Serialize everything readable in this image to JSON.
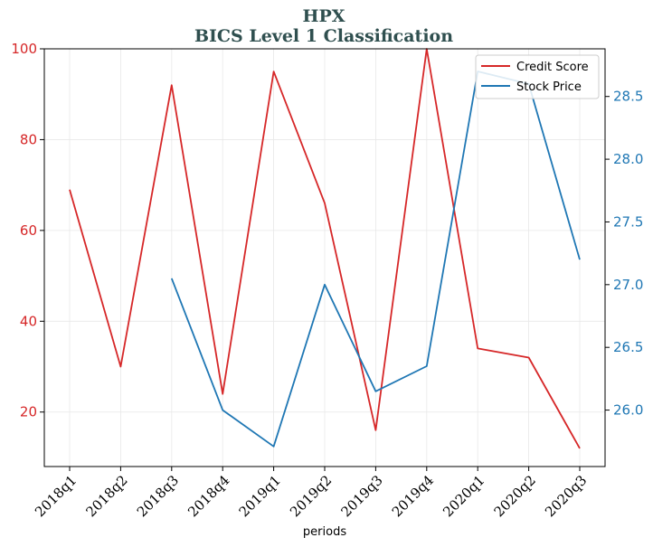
{
  "chart_data": {
    "type": "line",
    "title": "HPX",
    "subtitle": "BICS Level 1 Classification",
    "xlabel": "periods",
    "categories": [
      "2018q1",
      "2018q2",
      "2018q3",
      "2018q4",
      "2019q1",
      "2019q2",
      "2019q3",
      "2019q4",
      "2020q1",
      "2020q2",
      "2020q3"
    ],
    "series": [
      {
        "name": "Credit Score",
        "axis": "left",
        "color": "#d62728",
        "values": [
          69,
          30,
          92,
          24,
          95,
          66,
          16,
          100,
          34,
          32,
          12
        ]
      },
      {
        "name": "Stock Price",
        "axis": "right",
        "color": "#1f77b4",
        "values": [
          null,
          null,
          27.05,
          26.0,
          25.71,
          27.0,
          26.15,
          26.35,
          28.7,
          28.6,
          27.2
        ]
      }
    ],
    "y_left": {
      "ylim": [
        8,
        100
      ],
      "ticks": [
        20,
        40,
        60,
        80,
        100
      ],
      "tick_labels": [
        "20",
        "40",
        "60",
        "80",
        "100"
      ]
    },
    "y_right": {
      "ylim": [
        25.55,
        28.88
      ],
      "ticks": [
        26.0,
        26.5,
        27.0,
        27.5,
        28.0,
        28.5
      ],
      "tick_labels": [
        "26.0",
        "26.5",
        "27.0",
        "27.5",
        "28.0",
        "28.5"
      ]
    },
    "grid": true,
    "legend": "top-right"
  }
}
